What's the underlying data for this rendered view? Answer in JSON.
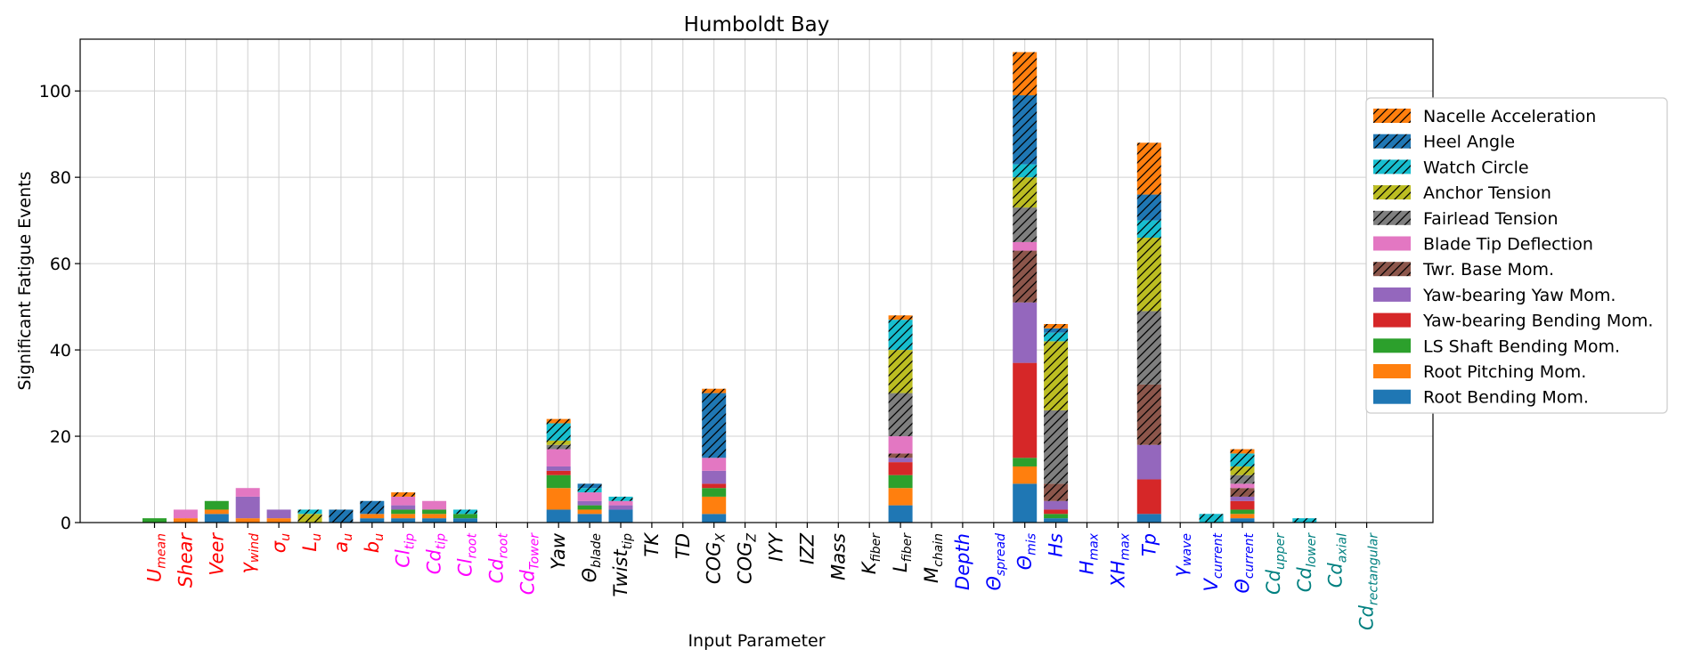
{
  "chart_data": {
    "type": "bar",
    "stacked": true,
    "title": "Humboldt Bay",
    "xlabel": "Input Parameter",
    "ylabel": "Significant Fatigue Events",
    "ylim": [
      0,
      112
    ],
    "yticks": [
      0,
      20,
      40,
      60,
      80,
      100
    ],
    "grid": true,
    "legend_position": "right",
    "categories": [
      {
        "base": "U",
        "sub": "mean",
        "color": "#ff0000"
      },
      {
        "base": "Shear",
        "sub": "",
        "color": "#ff0000"
      },
      {
        "base": "Veer",
        "sub": "",
        "color": "#ff0000"
      },
      {
        "base": "γ",
        "sub": "wind",
        "color": "#ff0000"
      },
      {
        "base": "σ",
        "sub": "u",
        "color": "#ff0000"
      },
      {
        "base": "L",
        "sub": "u",
        "color": "#ff0000"
      },
      {
        "base": "a",
        "sub": "u",
        "color": "#ff0000"
      },
      {
        "base": "b",
        "sub": "u",
        "color": "#ff0000"
      },
      {
        "base": "Cl",
        "sub": "tip",
        "color": "#ff00ff"
      },
      {
        "base": "Cd",
        "sub": "tip",
        "color": "#ff00ff"
      },
      {
        "base": "Cl",
        "sub": "root",
        "color": "#ff00ff"
      },
      {
        "base": "Cd",
        "sub": "root",
        "color": "#ff00ff"
      },
      {
        "base": "Cd",
        "sub": "Tower",
        "color": "#ff00ff"
      },
      {
        "base": "Yaw",
        "sub": "",
        "color": "#000000"
      },
      {
        "base": "Θ",
        "sub": "blade",
        "color": "#000000"
      },
      {
        "base": "Twist",
        "sub": "tip",
        "color": "#000000"
      },
      {
        "base": "TK",
        "sub": "",
        "color": "#000000"
      },
      {
        "base": "TD",
        "sub": "",
        "color": "#000000"
      },
      {
        "base": "COG",
        "sub": "X",
        "color": "#000000"
      },
      {
        "base": "COG",
        "sub": "Z",
        "color": "#000000"
      },
      {
        "base": "IYY",
        "sub": "",
        "color": "#000000"
      },
      {
        "base": "IZZ",
        "sub": "",
        "color": "#000000"
      },
      {
        "base": "Mass",
        "sub": "",
        "color": "#000000"
      },
      {
        "base": "K",
        "sub": "fiber",
        "color": "#000000"
      },
      {
        "base": "L",
        "sub": "fiber",
        "color": "#000000"
      },
      {
        "base": "M",
        "sub": "chain",
        "color": "#000000"
      },
      {
        "base": "Depth",
        "sub": "",
        "color": "#0000ff"
      },
      {
        "base": "Θ",
        "sub": "spread",
        "color": "#0000ff"
      },
      {
        "base": "Θ",
        "sub": "mis",
        "color": "#0000ff"
      },
      {
        "base": "Hs",
        "sub": "",
        "color": "#0000ff"
      },
      {
        "base": "H",
        "sub": "max",
        "color": "#0000ff"
      },
      {
        "base": "XH",
        "sub": "max",
        "color": "#0000ff"
      },
      {
        "base": "Tp",
        "sub": "",
        "color": "#0000ff"
      },
      {
        "base": "γ",
        "sub": "wave",
        "color": "#0000ff"
      },
      {
        "base": "V",
        "sub": "current",
        "color": "#0000ff"
      },
      {
        "base": "Θ",
        "sub": "current",
        "color": "#0000ff"
      },
      {
        "base": "Cd",
        "sub": "upper",
        "color": "#008080"
      },
      {
        "base": "Cd",
        "sub": "lower",
        "color": "#008080"
      },
      {
        "base": "Cd",
        "sub": "axial",
        "color": "#008080"
      },
      {
        "base": "Cd",
        "sub": "rectangular",
        "color": "#008080"
      }
    ],
    "series": [
      {
        "name": "Root Bending Mom.",
        "color": "#1f77b4",
        "hatch": false,
        "values": [
          0,
          0,
          2,
          0,
          0,
          0,
          0,
          1,
          1,
          1,
          1,
          0,
          0,
          3,
          2,
          3,
          0,
          0,
          2,
          0,
          0,
          0,
          0,
          0,
          4,
          0,
          0,
          0,
          9,
          1,
          0,
          0,
          2,
          0,
          0,
          1,
          0,
          0,
          0,
          0
        ]
      },
      {
        "name": "Root Pitching Mom.",
        "color": "#ff7f0e",
        "hatch": false,
        "values": [
          0,
          1,
          1,
          1,
          1,
          0,
          0,
          1,
          1,
          1,
          0,
          0,
          0,
          5,
          1,
          0,
          0,
          0,
          4,
          0,
          0,
          0,
          0,
          0,
          4,
          0,
          0,
          0,
          4,
          0,
          0,
          0,
          0,
          0,
          0,
          1,
          0,
          0,
          0,
          0
        ]
      },
      {
        "name": "LS Shaft Bending Mom.",
        "color": "#2ca02c",
        "hatch": false,
        "values": [
          1,
          0,
          2,
          0,
          0,
          0,
          0,
          0,
          1,
          1,
          1,
          0,
          0,
          3,
          1,
          0,
          0,
          0,
          2,
          0,
          0,
          0,
          0,
          0,
          3,
          0,
          0,
          0,
          2,
          1,
          0,
          0,
          0,
          0,
          0,
          1,
          0,
          0,
          0,
          0
        ]
      },
      {
        "name": "Yaw-bearing Bending Mom.",
        "color": "#d62728",
        "hatch": false,
        "values": [
          0,
          0,
          0,
          0,
          0,
          0,
          0,
          0,
          0,
          0,
          0,
          0,
          0,
          1,
          0,
          0,
          0,
          0,
          1,
          0,
          0,
          0,
          0,
          0,
          3,
          0,
          0,
          0,
          22,
          1,
          0,
          0,
          8,
          0,
          0,
          2,
          0,
          0,
          0,
          0
        ]
      },
      {
        "name": "Yaw-bearing Yaw Mom.",
        "color": "#9467bd",
        "hatch": false,
        "values": [
          0,
          0,
          0,
          5,
          2,
          0,
          0,
          0,
          1,
          0,
          0,
          0,
          0,
          1,
          1,
          1,
          0,
          0,
          3,
          0,
          0,
          0,
          0,
          0,
          1,
          0,
          0,
          0,
          14,
          2,
          0,
          0,
          8,
          0,
          0,
          1,
          0,
          0,
          0,
          0
        ]
      },
      {
        "name": "Twr. Base Mom.",
        "color": "#8c564b",
        "hatch": true,
        "values": [
          0,
          0,
          0,
          0,
          0,
          0,
          0,
          0,
          0,
          0,
          0,
          0,
          0,
          0,
          0,
          0,
          0,
          0,
          0,
          0,
          0,
          0,
          0,
          0,
          1,
          0,
          0,
          0,
          12,
          4,
          0,
          0,
          14,
          0,
          0,
          2,
          0,
          0,
          0,
          0
        ]
      },
      {
        "name": "Blade Tip Deflection",
        "color": "#e377c2",
        "hatch": false,
        "values": [
          0,
          2,
          0,
          2,
          0,
          0,
          0,
          0,
          2,
          2,
          0,
          0,
          0,
          4,
          2,
          1,
          0,
          0,
          3,
          0,
          0,
          0,
          0,
          0,
          4,
          0,
          0,
          0,
          2,
          0,
          0,
          0,
          0,
          0,
          0,
          1,
          0,
          0,
          0,
          0
        ]
      },
      {
        "name": "Fairlead Tension",
        "color": "#7f7f7f",
        "hatch": true,
        "values": [
          0,
          0,
          0,
          0,
          0,
          0,
          0,
          0,
          0,
          0,
          0,
          0,
          0,
          1,
          0,
          0,
          0,
          0,
          0,
          0,
          0,
          0,
          0,
          0,
          10,
          0,
          0,
          0,
          8,
          17,
          0,
          0,
          17,
          0,
          0,
          2,
          0,
          0,
          0,
          0
        ]
      },
      {
        "name": "Anchor Tension",
        "color": "#bcbd22",
        "hatch": true,
        "values": [
          0,
          0,
          0,
          0,
          0,
          2,
          0,
          0,
          0,
          0,
          0,
          0,
          0,
          1,
          0,
          0,
          0,
          0,
          0,
          0,
          0,
          0,
          0,
          0,
          10,
          0,
          0,
          0,
          7,
          16,
          0,
          0,
          17,
          0,
          0,
          2,
          0,
          0,
          0,
          0
        ]
      },
      {
        "name": "Watch Circle",
        "color": "#17becf",
        "hatch": true,
        "values": [
          0,
          0,
          0,
          0,
          0,
          1,
          0,
          0,
          0,
          0,
          1,
          0,
          0,
          4,
          1,
          1,
          0,
          0,
          0,
          0,
          0,
          0,
          0,
          0,
          7,
          0,
          0,
          0,
          3,
          2,
          0,
          0,
          4,
          0,
          2,
          3,
          0,
          1,
          0,
          0
        ]
      },
      {
        "name": "Heel Angle",
        "color": "#1f77b4",
        "hatch": true,
        "values": [
          0,
          0,
          0,
          0,
          0,
          0,
          3,
          3,
          0,
          0,
          0,
          0,
          0,
          0,
          1,
          0,
          0,
          0,
          15,
          0,
          0,
          0,
          0,
          0,
          0,
          0,
          0,
          0,
          16,
          1,
          0,
          0,
          6,
          0,
          0,
          0,
          0,
          0,
          0,
          0
        ]
      },
      {
        "name": "Nacelle Acceleration",
        "color": "#ff7f0e",
        "hatch": true,
        "values": [
          0,
          0,
          0,
          0,
          0,
          0,
          0,
          0,
          1,
          0,
          0,
          0,
          0,
          1,
          0,
          0,
          0,
          0,
          1,
          0,
          0,
          0,
          0,
          0,
          1,
          0,
          0,
          0,
          10,
          1,
          0,
          0,
          12,
          0,
          0,
          1,
          0,
          0,
          0,
          0
        ]
      }
    ]
  }
}
